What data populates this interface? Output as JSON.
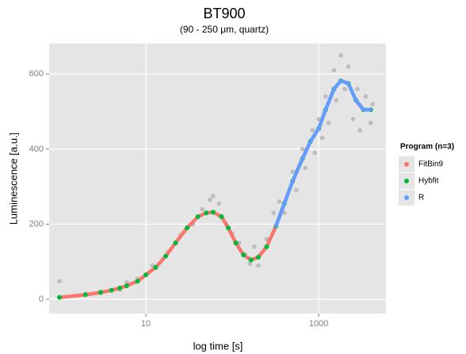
{
  "chart_data": {
    "type": "scatter-line",
    "title": "BT900",
    "subtitle": "(90 - 250 μm, quartz)",
    "x_label": "log time [s]",
    "y_label": "Luminescence [a.u.]",
    "xscale": "log",
    "xlim": [
      0.76,
      6000
    ],
    "ylim": [
      -38,
      681
    ],
    "xticks": [
      10,
      1000
    ],
    "yticks": [
      0,
      200,
      400,
      600
    ],
    "grid": true,
    "legend_title": "Program (n=3)",
    "legend_position": "right",
    "points": {
      "color": "#bdbdbd",
      "x": [
        1,
        2,
        3,
        5,
        6,
        8,
        12,
        18,
        25,
        35,
        45,
        55,
        60,
        70,
        85,
        100,
        120,
        140,
        160,
        180,
        200,
        250,
        300,
        350,
        400,
        500,
        550,
        650,
        700,
        850,
        900,
        1000,
        1100,
        1200,
        1300,
        1500,
        1600,
        1800,
        2000,
        2200,
        2500,
        2800,
        3000,
        3500,
        4000,
        4200
      ],
      "y": [
        48,
        15,
        20,
        25,
        45,
        55,
        90,
        125,
        170,
        200,
        240,
        265,
        275,
        255,
        200,
        175,
        150,
        120,
        95,
        140,
        90,
        160,
        230,
        260,
        230,
        340,
        290,
        400,
        350,
        450,
        390,
        480,
        430,
        540,
        470,
        610,
        530,
        650,
        560,
        620,
        480,
        560,
        450,
        540,
        470,
        520
      ]
    },
    "x": [
      1,
      2,
      3,
      4,
      5,
      6,
      8,
      10,
      13,
      17,
      22,
      30,
      40,
      50,
      60,
      75,
      90,
      110,
      135,
      165,
      200,
      250,
      320,
      400,
      500,
      650,
      800,
      1000,
      1200,
      1500,
      1800,
      2200,
      2700,
      3300,
      4000
    ],
    "series": [
      {
        "name": "FitBin9",
        "color": "#F8766D",
        "style": "line",
        "values": [
          5,
          12,
          18,
          24,
          30,
          36,
          48,
          65,
          85,
          115,
          150,
          190,
          220,
          230,
          232,
          220,
          190,
          150,
          118,
          105,
          112,
          140,
          195,
          255,
          315,
          375,
          420,
          455,
          505,
          560,
          582,
          575,
          530,
          505,
          505
        ]
      },
      {
        "name": "Hybfit",
        "color": "#00BA38",
        "style": "points",
        "values": [
          5,
          12,
          18,
          24,
          30,
          36,
          48,
          65,
          85,
          115,
          150,
          190,
          220,
          230,
          232,
          220,
          190,
          150,
          118,
          105,
          112,
          140,
          195,
          255,
          315,
          375,
          420,
          455,
          505,
          560,
          582,
          575,
          530,
          505,
          505
        ]
      },
      {
        "name": "R",
        "color": "#619CFF",
        "style": "line",
        "start": 22,
        "values": [
          5,
          12,
          18,
          24,
          30,
          36,
          48,
          65,
          85,
          115,
          150,
          190,
          220,
          230,
          232,
          220,
          190,
          150,
          118,
          105,
          112,
          140,
          195,
          255,
          315,
          375,
          420,
          455,
          505,
          560,
          582,
          575,
          530,
          505,
          505
        ]
      }
    ]
  }
}
